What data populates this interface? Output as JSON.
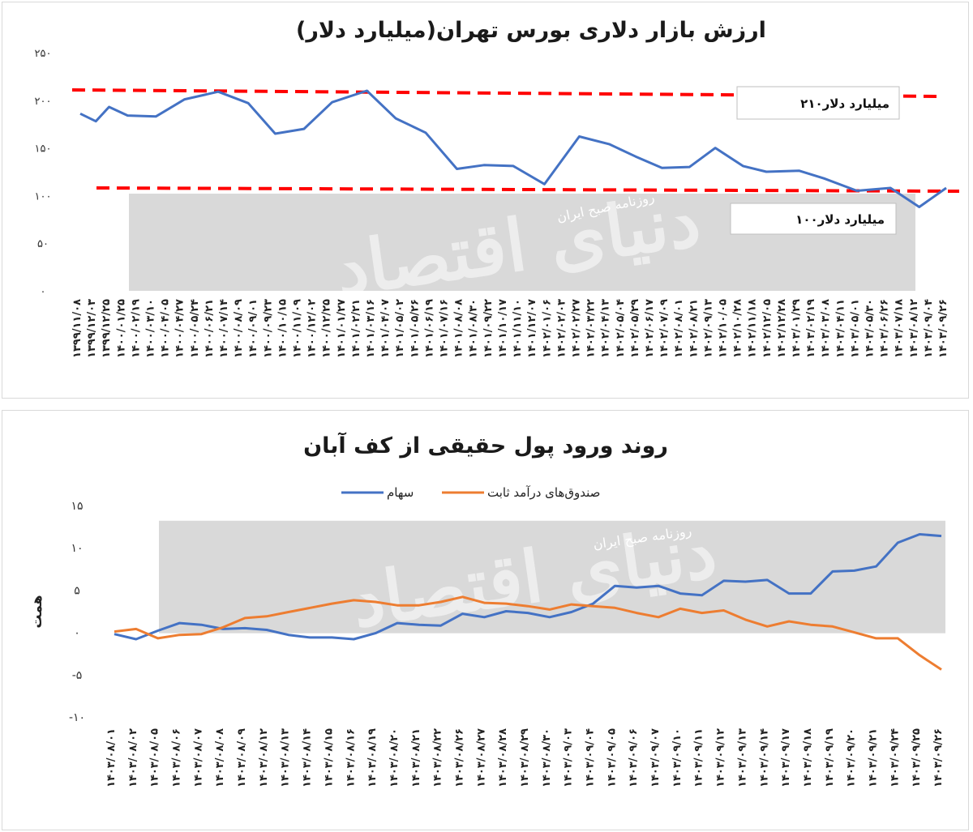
{
  "chart_data": [
    {
      "type": "line",
      "title": "ارزش بازار دلاری بورس تهران(میلیارد دلار)",
      "ylim": [
        0,
        250
      ],
      "yticks": [
        0,
        50,
        100,
        150,
        200,
        250
      ],
      "ytick_labels": [
        "0",
        "50",
        "100",
        "150",
        "200",
        "250"
      ],
      "grid": false,
      "x_tick_labels": [
        "1399/11/08",
        "1399/12/03",
        "1399/12/25",
        "1400/01/25",
        "1400/02/19",
        "1400/03/10",
        "1400/04/05",
        "1400/04/27",
        "1400/05/24",
        "1400/06/21",
        "1400/07/14",
        "1400/08/09",
        "1400/09/01",
        "1400/09/23",
        "1400/10/15",
        "1400/11/09",
        "1400/12/02",
        "1400/12/25",
        "1401/01/27",
        "1401/02/21",
        "1401/03/16",
        "1401/04/07",
        "1401/05/02",
        "1401/05/26",
        "1401/06/19",
        "1401/07/16",
        "1401/08/08",
        "1401/08/30",
        "1401/09/22",
        "1401/10/17",
        "1401/11/10",
        "1401/12/07",
        "1402/01/06",
        "1402/02/03",
        "1402/02/27",
        "1402/03/22",
        "1402/04/13",
        "1402/05/04",
        "1402/05/29",
        "1402/06/17",
        "1402/07/09",
        "1402/08/01",
        "1402/08/21",
        "1402/09/13",
        "1402/10/05",
        "1402/10/28",
        "1402/11/18",
        "1402/12/05",
        "1402/12/28",
        "1403/01/29",
        "1403/02/19",
        "1403/03/08",
        "1403/04/11",
        "1403/05/01",
        "1403/05/30",
        "1403/06/26",
        "1403/07/18",
        "1403/08/12",
        "1403/09/04",
        "1403/09/26"
      ],
      "series": [
        {
          "name": "",
          "color": "#4472c4",
          "x": [
            "1399/11/08",
            "1399/12/03",
            "1399/12/25",
            "1400/01/25",
            "1400/03/10",
            "1400/04/27",
            "1400/06/21",
            "1400/08/09",
            "1400/09/23",
            "1400/11/09",
            "1400/12/25",
            "1401/02/21",
            "1401/04/07",
            "1401/05/26",
            "1401/07/16",
            "1401/08/30",
            "1401/10/17",
            "1401/12/07",
            "1402/02/03",
            "1402/03/22",
            "1402/05/04",
            "1402/06/17",
            "1402/08/01",
            "1402/09/13",
            "1402/10/28",
            "1402/12/05",
            "1403/01/29",
            "1403/03/08",
            "1403/05/01",
            "1403/06/26",
            "1403/08/12",
            "1403/09/26"
          ],
          "y": [
            186,
            178,
            193,
            184,
            183,
            201,
            209,
            197,
            165,
            170,
            198,
            210,
            181,
            166,
            128,
            132,
            131,
            112,
            162,
            154,
            141,
            129,
            130,
            150,
            131,
            125,
            126,
            118,
            105,
            108,
            88,
            108
          ]
        }
      ],
      "annotations": [
        {
          "text": "210میلیارد دلار",
          "y": 210
        },
        {
          "text": "100میلیارد دلار",
          "y": 105
        }
      ],
      "watermarks": [
        "روزنامه صبح ایران",
        "دنیای اقتصاد"
      ]
    },
    {
      "type": "line",
      "title": "روند ورود پول حقیقی از کف آبان",
      "ylabel": "همت",
      "ylim": [
        -10,
        15
      ],
      "yticks": [
        -10,
        -5,
        0,
        5,
        10,
        15
      ],
      "ytick_labels": [
        "-10",
        "-5",
        "0",
        "5",
        "10",
        "15"
      ],
      "grid": false,
      "legend_position": "top",
      "categories": [
        "1403/08/01",
        "1403/08/02",
        "1403/08/05",
        "1403/08/06",
        "1403/08/07",
        "1403/08/08",
        "1403/08/09",
        "1403/08/12",
        "1403/08/13",
        "1403/08/14",
        "1403/08/15",
        "1403/08/16",
        "1403/08/19",
        "1403/08/20",
        "1403/08/21",
        "1403/08/22",
        "1403/08/26",
        "1403/08/27",
        "1403/08/28",
        "1403/08/29",
        "1403/08/30",
        "1403/09/03",
        "1403/09/04",
        "1403/09/05",
        "1403/09/06",
        "1403/09/07",
        "1403/09/10",
        "1403/09/11",
        "1403/09/12",
        "1403/09/13",
        "1403/09/14",
        "1403/09/17",
        "1403/09/18",
        "1403/09/19",
        "1403/09/20",
        "1403/09/21",
        "1403/09/24",
        "1403/09/25",
        "1403/09/26"
      ],
      "series": [
        {
          "name": "سهام",
          "color": "#4472c4",
          "values": [
            -0.2,
            -0.8,
            0.2,
            1.1,
            0.9,
            0.4,
            0.5,
            0.3,
            -0.3,
            -0.6,
            -0.6,
            -0.8,
            -0.1,
            1.1,
            0.9,
            0.8,
            2.2,
            1.8,
            2.5,
            2.3,
            1.8,
            2.4,
            3.4,
            5.5,
            5.3,
            5.5,
            4.6,
            4.4,
            6.1,
            6.0,
            6.2,
            4.6,
            4.6,
            7.2,
            7.3,
            7.8,
            10.6,
            11.6,
            11.4
          ]
        },
        {
          "name": "صندوق‌های درآمد ثابت",
          "color": "#ed7d31",
          "values": [
            0.1,
            0.4,
            -0.7,
            -0.3,
            -0.2,
            0.6,
            1.7,
            1.9,
            2.4,
            2.9,
            3.4,
            3.8,
            3.6,
            3.2,
            3.2,
            3.6,
            4.2,
            3.5,
            3.4,
            3.1,
            2.7,
            3.3,
            3.1,
            2.9,
            2.3,
            1.8,
            2.8,
            2.3,
            2.6,
            1.5,
            0.7,
            1.3,
            0.9,
            0.7,
            0.0,
            -0.7,
            -0.7,
            -2.7,
            -4.4
          ]
        }
      ],
      "x_tick_labels": [
        "1403/08/01",
        "1403/08/02",
        "1403/08/05",
        "1403/08/06",
        "1403/08/07",
        "1403/08/08",
        "1403/08/09",
        "1403/08/12",
        "1403/08/13",
        "1403/08/14",
        "1403/08/15",
        "1403/08/16",
        "1403/08/19",
        "1403/08/20",
        "1403/08/21",
        "1403/08/22",
        "1403/08/26",
        "1403/08/27",
        "1403/08/28",
        "1403/08/29",
        "1403/08/30",
        "1403/09/03",
        "1403/09/04",
        "1403/09/05",
        "1403/09/06",
        "1403/09/07",
        "1403/09/10",
        "1403/09/11",
        "1403/09/12",
        "1403/09/13",
        "1403/09/14",
        "1403/09/17",
        "1403/09/18",
        "1403/09/19",
        "1403/09/20",
        "1403/09/21",
        "1403/09/24",
        "1403/09/25",
        "1403/09/26"
      ],
      "watermarks": [
        "روزنامه صبح ایران",
        "دنیای اقتصاد"
      ]
    }
  ]
}
